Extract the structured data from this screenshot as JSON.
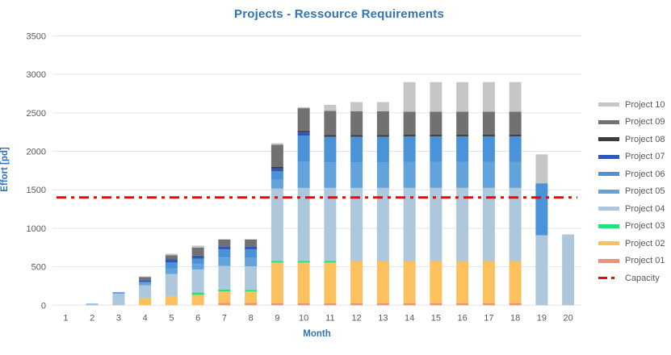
{
  "chart_data": {
    "type": "bar",
    "stacked": true,
    "title": "Projects - Ressource Requirements",
    "xlabel": "Month",
    "ylabel": "Effort [pd]",
    "x": [
      1,
      2,
      3,
      4,
      5,
      6,
      7,
      8,
      9,
      10,
      11,
      12,
      13,
      14,
      15,
      16,
      17,
      18,
      19,
      20
    ],
    "ylim": [
      0,
      3500
    ],
    "ytick_step": 500,
    "grid": true,
    "legend_position": "right",
    "series": [
      {
        "name": "Project 01",
        "color": "#F0916F",
        "values": [
          0,
          0,
          0,
          0,
          0,
          0,
          30,
          30,
          25,
          25,
          25,
          25,
          25,
          25,
          25,
          25,
          25,
          25,
          0,
          0
        ]
      },
      {
        "name": "Project 02",
        "color": "#FAC15E",
        "values": [
          0,
          0,
          0,
          90,
          120,
          135,
          150,
          150,
          530,
          530,
          530,
          550,
          550,
          550,
          550,
          550,
          550,
          550,
          0,
          0
        ]
      },
      {
        "name": "Project 03",
        "color": "#1EE575",
        "values": [
          0,
          0,
          0,
          0,
          0,
          30,
          25,
          20,
          20,
          20,
          20,
          0,
          0,
          0,
          0,
          0,
          0,
          0,
          0,
          0
        ]
      },
      {
        "name": "Project 04",
        "color": "#ADC7DC",
        "values": [
          0,
          10,
          150,
          170,
          285,
          300,
          305,
          305,
          940,
          950,
          950,
          950,
          950,
          950,
          950,
          950,
          950,
          950,
          910,
          920
        ]
      },
      {
        "name": "Project 05",
        "color": "#62A3DC",
        "values": [
          0,
          10,
          20,
          40,
          75,
          70,
          110,
          110,
          115,
          340,
          330,
          330,
          330,
          335,
          335,
          335,
          335,
          335,
          0,
          0
        ]
      },
      {
        "name": "Project 06",
        "color": "#4B93D9",
        "values": [
          0,
          0,
          0,
          0,
          75,
          70,
          105,
          110,
          110,
          340,
          335,
          335,
          335,
          335,
          335,
          335,
          335,
          335,
          675,
          0
        ]
      },
      {
        "name": "Project 07",
        "color": "#3158B8",
        "values": [
          0,
          0,
          0,
          25,
          45,
          40,
          40,
          40,
          40,
          45,
          0,
          0,
          0,
          0,
          0,
          0,
          0,
          0,
          0,
          0
        ]
      },
      {
        "name": "Project 08",
        "color": "#3B3B3B",
        "values": [
          0,
          0,
          0,
          0,
          0,
          0,
          0,
          0,
          20,
          20,
          20,
          20,
          20,
          20,
          20,
          20,
          20,
          20,
          0,
          0
        ]
      },
      {
        "name": "Project 09",
        "color": "#717171",
        "values": [
          0,
          0,
          0,
          40,
          50,
          105,
          90,
          90,
          285,
          290,
          315,
          310,
          310,
          300,
          300,
          300,
          300,
          300,
          0,
          0
        ]
      },
      {
        "name": "Project 10",
        "color": "#C6C6C6",
        "values": [
          0,
          0,
          0,
          10,
          20,
          25,
          0,
          0,
          20,
          15,
          80,
          120,
          120,
          385,
          385,
          385,
          385,
          385,
          375,
          0
        ]
      }
    ],
    "capacity": {
      "label": "Capacity",
      "value": 1400,
      "color": "#FE0000"
    }
  },
  "axes": {
    "y_ticks": [
      "0",
      "500",
      "1000",
      "1500",
      "2000",
      "2500",
      "3000",
      "3500"
    ],
    "x_ticks": [
      "1",
      "2",
      "3",
      "4",
      "5",
      "6",
      "7",
      "8",
      "9",
      "10",
      "11",
      "12",
      "13",
      "14",
      "15",
      "16",
      "17",
      "18",
      "19",
      "20"
    ]
  },
  "colors": {
    "title_blue": "#2E75B6",
    "tick_gray": "#595959",
    "gridline": "#E3E3E3"
  }
}
